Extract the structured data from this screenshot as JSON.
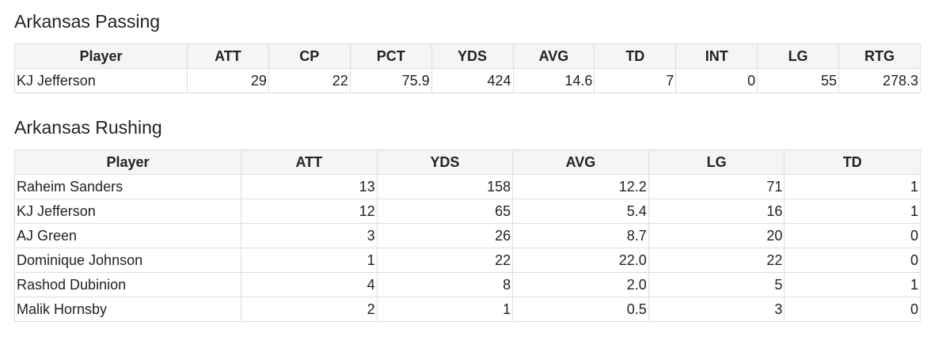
{
  "sections": [
    {
      "title": "Arkansas Passing",
      "columns": [
        "Player",
        "ATT",
        "CP",
        "PCT",
        "YDS",
        "AVG",
        "TD",
        "INT",
        "LG",
        "RTG"
      ],
      "rows": [
        [
          "KJ Jefferson",
          "29",
          "22",
          "75.9",
          "424",
          "14.6",
          "7",
          "0",
          "55",
          "278.3"
        ]
      ]
    },
    {
      "title": "Arkansas Rushing",
      "columns": [
        "Player",
        "ATT",
        "YDS",
        "AVG",
        "LG",
        "TD"
      ],
      "rows": [
        [
          "Raheim Sanders",
          "13",
          "158",
          "12.2",
          "71",
          "1"
        ],
        [
          "KJ Jefferson",
          "12",
          "65",
          "5.4",
          "16",
          "1"
        ],
        [
          "AJ Green",
          "3",
          "26",
          "8.7",
          "20",
          "0"
        ],
        [
          "Dominique Johnson",
          "1",
          "22",
          "22.0",
          "22",
          "0"
        ],
        [
          "Rashod Dubinion",
          "4",
          "8",
          "2.0",
          "5",
          "1"
        ],
        [
          "Malik Hornsby",
          "2",
          "1",
          "0.5",
          "3",
          "0"
        ]
      ]
    }
  ]
}
